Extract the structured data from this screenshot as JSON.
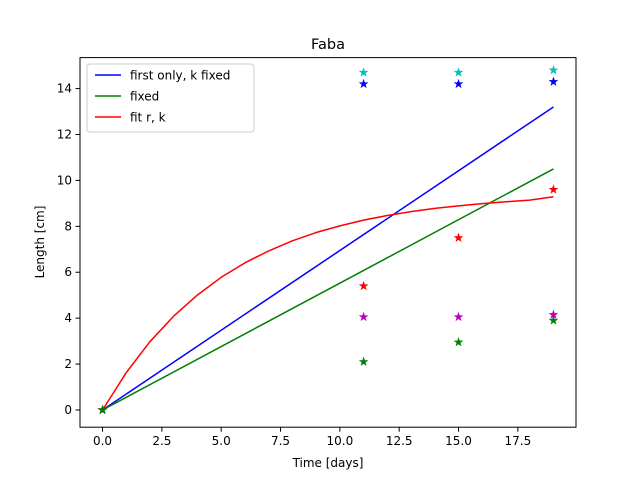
{
  "chart_data": {
    "type": "line",
    "title": "Faba",
    "xlabel": "Time [days]",
    "ylabel": "Length [cm]",
    "xlim": [
      -0.95,
      19.95
    ],
    "ylim": [
      -0.75,
      15.35
    ],
    "xticks": [
      0.0,
      2.5,
      5.0,
      7.5,
      10.0,
      12.5,
      15.0,
      17.5
    ],
    "xtick_labels": [
      "0.0",
      "2.5",
      "5.0",
      "7.5",
      "10.0",
      "12.5",
      "15.0",
      "17.5"
    ],
    "yticks": [
      0,
      2,
      4,
      6,
      8,
      10,
      12,
      14
    ],
    "ytick_labels": [
      "0",
      "2",
      "4",
      "6",
      "8",
      "10",
      "12",
      "14"
    ],
    "grid": false,
    "legend_position": "top-left",
    "series": [
      {
        "name": "first only, k fixed",
        "kind": "line",
        "color": "#0000ff",
        "x": [
          0,
          19
        ],
        "y": [
          0,
          13.2
        ]
      },
      {
        "name": "fixed",
        "kind": "line",
        "color": "#008000",
        "x": [
          0,
          19
        ],
        "y": [
          0,
          10.5
        ]
      },
      {
        "name": "fit r, k",
        "kind": "line",
        "color": "#ff0000",
        "x": [
          0,
          1,
          2,
          3,
          4,
          5,
          6,
          7,
          8,
          9,
          10,
          11,
          12,
          13,
          14,
          15,
          16,
          17,
          18,
          19
        ],
        "y": [
          0,
          1.63,
          2.98,
          4.09,
          5.01,
          5.78,
          6.41,
          6.93,
          7.37,
          7.73,
          8.02,
          8.27,
          8.47,
          8.64,
          8.78,
          8.89,
          8.99,
          9.07,
          9.14,
          9.29
        ]
      }
    ],
    "scatter": [
      {
        "kind": "markers",
        "color": "#00bfbf",
        "x": [
          0,
          11,
          15,
          19
        ],
        "y": [
          0,
          14.7,
          14.7,
          14.8
        ]
      },
      {
        "kind": "markers",
        "color": "#0000ff",
        "x": [
          0,
          11,
          15,
          19
        ],
        "y": [
          0,
          14.2,
          14.2,
          14.3
        ]
      },
      {
        "kind": "markers",
        "color": "#ff0000",
        "x": [
          0,
          11,
          15,
          19
        ],
        "y": [
          0,
          5.4,
          7.5,
          9.6
        ]
      },
      {
        "kind": "markers",
        "color": "#bf00bf",
        "x": [
          0,
          11,
          15,
          19
        ],
        "y": [
          0,
          4.05,
          4.05,
          4.15
        ]
      },
      {
        "kind": "markers",
        "color": "#008000",
        "x": [
          0,
          11,
          15,
          19
        ],
        "y": [
          0,
          2.1,
          2.95,
          3.9
        ]
      }
    ]
  }
}
